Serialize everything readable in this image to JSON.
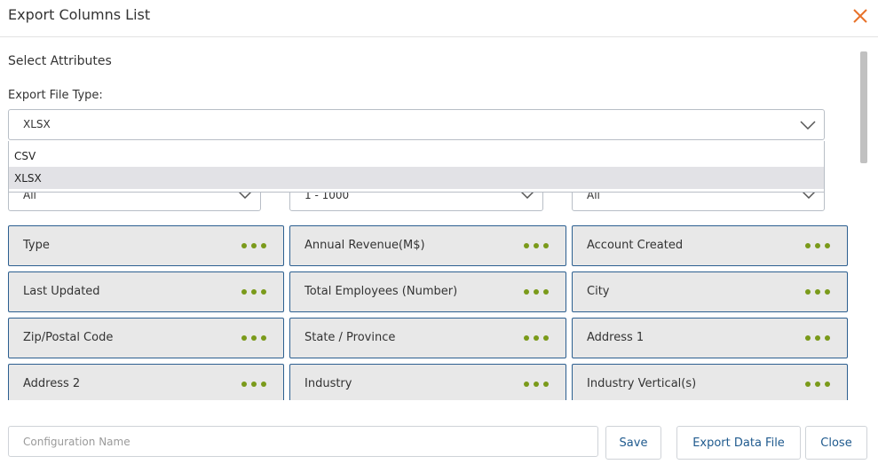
{
  "dialog": {
    "title": "Export Columns List",
    "close_icon": "close-icon",
    "accent_color": "#e8722a"
  },
  "section_title": "Select Attributes",
  "file_type": {
    "label": "Export File Type:",
    "value": "XLSX",
    "options": [
      {
        "label": "CSV",
        "selected": false
      },
      {
        "label": "XLSX",
        "selected": true
      }
    ]
  },
  "filters": [
    {
      "value": "All"
    },
    {
      "value": "1 - 1000"
    },
    {
      "value": "All"
    }
  ],
  "attributes": [
    {
      "label": "Type"
    },
    {
      "label": "Annual Revenue(M$)"
    },
    {
      "label": "Account Created"
    },
    {
      "label": "Last Updated"
    },
    {
      "label": "Total Employees (Number)"
    },
    {
      "label": "City"
    },
    {
      "label": "Zip/Postal Code"
    },
    {
      "label": "State / Province"
    },
    {
      "label": "Address 1"
    },
    {
      "label": "Address 2"
    },
    {
      "label": "Industry"
    },
    {
      "label": "Industry Vertical(s)"
    }
  ],
  "attribute_menu_icon": "more-dots-icon",
  "attribute_menu_color": "#7a9a1a",
  "footer": {
    "config_placeholder": "Configuration Name",
    "config_value": "",
    "save_label": "Save",
    "export_label": "Export Data File",
    "close_label": "Close"
  }
}
